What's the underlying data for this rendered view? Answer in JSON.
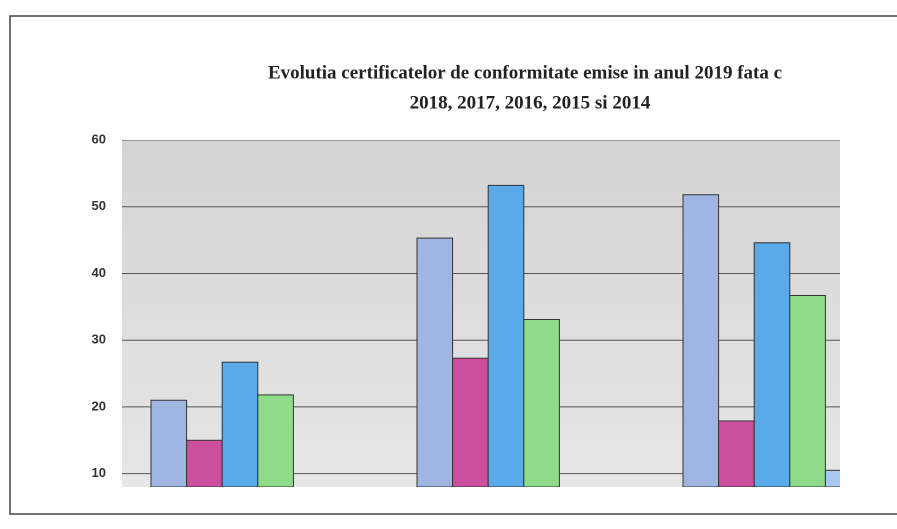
{
  "chart_data": {
    "type": "bar",
    "title": [
      "Evolutia certificatelor de conformitate emise in anul 2019 fata c",
      "2018, 2017, 2016, 2015 si 2014"
    ],
    "categories": [
      null,
      null,
      null
    ],
    "series": [
      {
        "color": "#9fb5e2",
        "values": [
          21,
          45.3,
          51.8
        ]
      },
      {
        "color": "#cc4f9e",
        "values": [
          15,
          27.3,
          17.9
        ]
      },
      {
        "color": "#5aa9e8",
        "values": [
          26.7,
          53.2,
          44.6
        ]
      },
      {
        "color": "#8fdb8a",
        "values": [
          21.8,
          33.1,
          36.7
        ]
      },
      {
        "color": "#a8c8f2",
        "values": [
          null,
          null,
          10.5
        ]
      }
    ],
    "ylim": [
      8,
      60
    ],
    "yticks": [
      10,
      20,
      30,
      40,
      50,
      60
    ],
    "grid": true
  }
}
